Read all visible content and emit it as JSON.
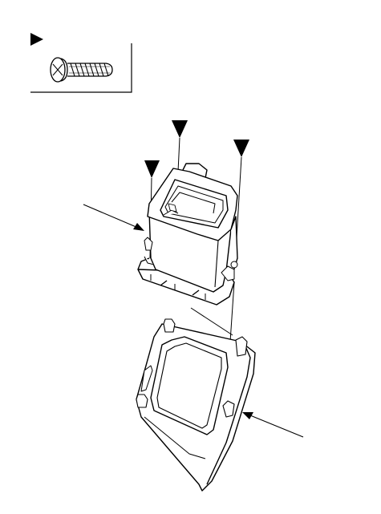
{
  "figure": {
    "legend_box": {
      "marker": "filled-triangle-marker",
      "part": "pan-head-screw"
    },
    "markers": [
      "filled-triangle-marker",
      "filled-triangle-marker",
      "filled-triangle-marker"
    ],
    "arrows": [
      "leader-arrow-left",
      "leader-arrow-right"
    ],
    "parts": [
      "console-compartment-box",
      "console-bezel-panel"
    ],
    "colors": {
      "line": "#000000",
      "background": "#ffffff"
    }
  }
}
